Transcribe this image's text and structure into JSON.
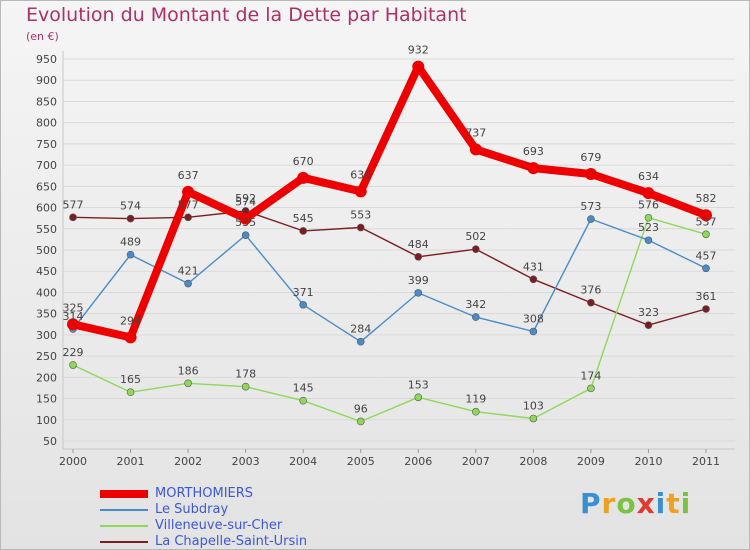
{
  "title": "Evolution du Montant de la Dette par Habitant",
  "unit": "(en €)",
  "logo_text": "Proxiti",
  "chart_data": {
    "type": "line",
    "x": [
      "2000",
      "2001",
      "2002",
      "2003",
      "2004",
      "2005",
      "2006",
      "2007",
      "2008",
      "2009",
      "2010",
      "2011"
    ],
    "ylim": [
      50,
      950
    ],
    "yticks": [
      50,
      100,
      150,
      200,
      250,
      300,
      350,
      400,
      450,
      500,
      550,
      600,
      650,
      700,
      750,
      800,
      850,
      900,
      950
    ],
    "grid": "horizontal",
    "legend_placement": "bottom-left",
    "series": [
      {
        "name": "MORTHOMIERS",
        "color": "#ee0000",
        "values": [
          325,
          294,
          637,
          574,
          670,
          638,
          932,
          737,
          693,
          679,
          634,
          582
        ]
      },
      {
        "name": "Le Subdray",
        "color": "#4a8cc9",
        "values": [
          314,
          489,
          421,
          535,
          371,
          284,
          399,
          342,
          308,
          573,
          523,
          457
        ]
      },
      {
        "name": "Villeneuve-sur-Cher",
        "color": "#8ed85a",
        "values": [
          229,
          165,
          186,
          178,
          145,
          96,
          153,
          119,
          103,
          174,
          576,
          537
        ]
      },
      {
        "name": "La Chapelle-Saint-Ursin",
        "color": "#7b1e22",
        "values": [
          577,
          574,
          577,
          592,
          545,
          553,
          484,
          502,
          431,
          376,
          323,
          361
        ]
      }
    ]
  }
}
